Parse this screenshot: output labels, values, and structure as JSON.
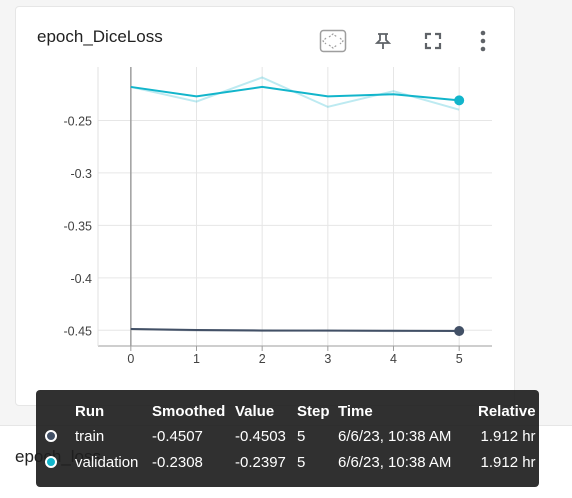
{
  "card": {
    "title": "epoch_DiceLoss"
  },
  "toolbar": {
    "icons": [
      "fit-domain-icon",
      "pin-icon",
      "fullscreen-icon",
      "more-vert-icon"
    ]
  },
  "second_card": {
    "title": "epoch_loss"
  },
  "chart_data": {
    "type": "line",
    "title": "epoch_DiceLoss",
    "x": [
      0,
      1,
      2,
      3,
      4,
      5
    ],
    "x_ticks": [
      "0",
      "1",
      "2",
      "3",
      "4",
      "5"
    ],
    "y_ticks": [
      "-0.25",
      "-0.3",
      "-0.35",
      "-0.4",
      "-0.45"
    ],
    "y_tick_values": [
      -0.25,
      -0.3,
      -0.35,
      -0.4,
      -0.45
    ],
    "ylim": [
      -0.465,
      -0.199
    ],
    "xlim": [
      -0.5,
      5.5
    ],
    "grid": true,
    "series": [
      {
        "name": "train",
        "color": "#425066",
        "smoothed": [
          -0.4488,
          -0.4497,
          -0.4502,
          -0.4503,
          -0.4505,
          -0.4507
        ],
        "values": [
          -0.4488,
          -0.4502,
          -0.4506,
          -0.4501,
          -0.4508,
          -0.4503
        ]
      },
      {
        "name": "validation",
        "color": "#12b5cb",
        "smoothed": [
          -0.218,
          -0.227,
          -0.218,
          -0.227,
          -0.225,
          -0.2308
        ],
        "values": [
          -0.218,
          -0.232,
          -0.209,
          -0.237,
          -0.222,
          -0.2397
        ]
      }
    ]
  },
  "tooltip": {
    "headers": {
      "run": "Run",
      "smoothed": "Smoothed",
      "value": "Value",
      "step": "Step",
      "time": "Time",
      "relative": "Relative"
    },
    "rows": [
      {
        "run": "train",
        "color": "#425066",
        "smoothed": "-0.4507",
        "value": "-0.4503",
        "step": "5",
        "time": "6/6/23, 10:38 AM",
        "relative": "1.912 hr"
      },
      {
        "run": "validation",
        "color": "#12b5cb",
        "smoothed": "-0.2308",
        "value": "-0.2397",
        "step": "5",
        "time": "6/6/23, 10:38 AM",
        "relative": "1.912 hr"
      }
    ]
  }
}
